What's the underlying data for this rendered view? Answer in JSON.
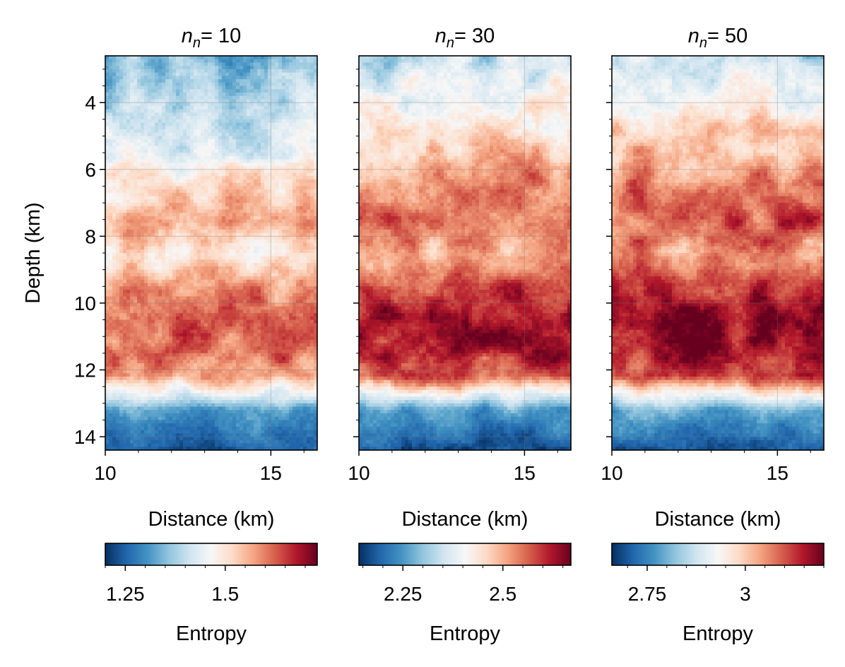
{
  "chart_data": [
    {
      "type": "heatmap",
      "title_prefix": "n",
      "title_sub": "n",
      "title_suffix": "= 10",
      "xlabel": "Distance (km)",
      "ylabel": "Depth (km)",
      "xlim": [
        10,
        16.4
      ],
      "ylim": [
        2.6,
        14.4
      ],
      "x_ticks": [
        10,
        15
      ],
      "x_tick_labels": [
        "10",
        "15"
      ],
      "y_ticks": [
        4,
        6,
        8,
        10,
        12,
        14
      ],
      "y_tick_labels": [
        "4",
        "6",
        "8",
        "10",
        "12",
        "14"
      ],
      "grid": true,
      "colormap": "RdBu_r",
      "colorbar": {
        "label": "Entropy",
        "vmin": 1.2,
        "vmax": 1.73,
        "ticks": [
          1.25,
          1.5
        ],
        "tick_labels": [
          "1.25",
          "1.5"
        ]
      },
      "depth_profile": [
        {
          "depth": 2.6,
          "level": 0.28
        },
        {
          "depth": 4.0,
          "level": 0.36
        },
        {
          "depth": 5.5,
          "level": 0.45
        },
        {
          "depth": 6.5,
          "level": 0.58
        },
        {
          "depth": 7.5,
          "level": 0.66
        },
        {
          "depth": 8.5,
          "level": 0.55
        },
        {
          "depth": 9.5,
          "level": 0.72
        },
        {
          "depth": 10.5,
          "level": 0.8
        },
        {
          "depth": 11.5,
          "level": 0.78
        },
        {
          "depth": 12.2,
          "level": 0.7
        },
        {
          "depth": 12.7,
          "level": 0.48
        },
        {
          "depth": 13.2,
          "level": 0.22
        },
        {
          "depth": 14.4,
          "level": 0.08
        }
      ]
    },
    {
      "type": "heatmap",
      "title_prefix": "n",
      "title_sub": "n",
      "title_suffix": "= 30",
      "xlabel": "Distance (km)",
      "ylabel": "",
      "xlim": [
        10,
        16.4
      ],
      "ylim": [
        2.6,
        14.4
      ],
      "x_ticks": [
        10,
        15
      ],
      "x_tick_labels": [
        "10",
        "15"
      ],
      "y_ticks": [
        4,
        6,
        8,
        10,
        12,
        14
      ],
      "y_tick_labels": [],
      "grid": true,
      "colormap": "RdBu_r",
      "colorbar": {
        "label": "Entropy",
        "vmin": 2.14,
        "vmax": 2.67,
        "ticks": [
          2.25,
          2.5
        ],
        "tick_labels": [
          "2.25",
          "2.5"
        ]
      },
      "depth_profile": [
        {
          "depth": 2.6,
          "level": 0.38
        },
        {
          "depth": 4.0,
          "level": 0.5
        },
        {
          "depth": 5.5,
          "level": 0.63
        },
        {
          "depth": 6.5,
          "level": 0.74
        },
        {
          "depth": 7.5,
          "level": 0.8
        },
        {
          "depth": 8.5,
          "level": 0.68
        },
        {
          "depth": 9.5,
          "level": 0.86
        },
        {
          "depth": 10.5,
          "level": 0.92
        },
        {
          "depth": 11.5,
          "level": 0.9
        },
        {
          "depth": 12.2,
          "level": 0.82
        },
        {
          "depth": 12.7,
          "level": 0.5
        },
        {
          "depth": 13.2,
          "level": 0.22
        },
        {
          "depth": 14.4,
          "level": 0.07
        }
      ]
    },
    {
      "type": "heatmap",
      "title_prefix": "n",
      "title_sub": "n",
      "title_suffix": "= 50",
      "xlabel": "Distance (km)",
      "ylabel": "",
      "xlim": [
        10,
        16.4
      ],
      "ylim": [
        2.6,
        14.4
      ],
      "x_ticks": [
        10,
        15
      ],
      "x_tick_labels": [
        "10",
        "15"
      ],
      "y_ticks": [
        4,
        6,
        8,
        10,
        12,
        14
      ],
      "y_tick_labels": [],
      "grid": true,
      "colormap": "RdBu_r",
      "colorbar": {
        "label": "Entropy",
        "vmin": 2.66,
        "vmax": 3.2,
        "ticks": [
          2.75,
          3
        ],
        "tick_labels": [
          "2.75",
          "3"
        ]
      },
      "depth_profile": [
        {
          "depth": 2.6,
          "level": 0.4
        },
        {
          "depth": 4.0,
          "level": 0.52
        },
        {
          "depth": 5.5,
          "level": 0.66
        },
        {
          "depth": 6.5,
          "level": 0.76
        },
        {
          "depth": 7.5,
          "level": 0.82
        },
        {
          "depth": 8.5,
          "level": 0.72
        },
        {
          "depth": 9.5,
          "level": 0.88
        },
        {
          "depth": 10.5,
          "level": 0.94
        },
        {
          "depth": 11.5,
          "level": 0.92
        },
        {
          "depth": 12.2,
          "level": 0.84
        },
        {
          "depth": 12.7,
          "level": 0.52
        },
        {
          "depth": 13.2,
          "level": 0.23
        },
        {
          "depth": 14.4,
          "level": 0.07
        }
      ]
    }
  ]
}
